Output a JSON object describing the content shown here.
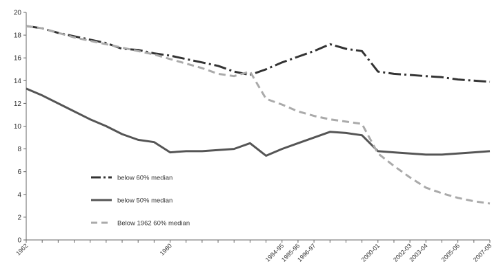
{
  "chart_data": {
    "type": "line",
    "title": "",
    "xlabel": "",
    "ylabel": "",
    "ylim": [
      0,
      20
    ],
    "yticks": [
      0,
      2,
      4,
      6,
      8,
      10,
      12,
      14,
      16,
      18,
      20
    ],
    "grid": false,
    "legend_position": "bottom-left",
    "x": [
      "1962",
      "1964",
      "1966",
      "1968",
      "1970",
      "1972",
      "1974",
      "1976",
      "1978",
      "1980",
      "1982",
      "1984",
      "1986",
      "1988",
      "1990",
      "1992",
      "1994-95",
      "1995-96",
      "1996-97",
      "1997-98",
      "1998-99",
      "1999-00",
      "2000-01",
      "2001-02",
      "2002-03",
      "2003-04",
      "2004-05",
      "2005-06",
      "2006-07",
      "2007-08"
    ],
    "x_tick_labels": [
      "1962",
      "1980",
      "1994-95",
      "1995-96",
      "1996-97",
      "2000-01",
      "2002-03",
      "2003-04",
      "2005-06",
      "2007-08"
    ],
    "series": [
      {
        "name": "below 60% median",
        "style": "dash-dot",
        "color": "#333333",
        "values": [
          18.8,
          18.6,
          18.2,
          17.9,
          17.6,
          17.3,
          16.8,
          16.7,
          16.4,
          16.2,
          15.9,
          15.6,
          15.3,
          14.8,
          14.5,
          15.0,
          15.6,
          16.1,
          16.6,
          17.2,
          16.8,
          16.6,
          14.8,
          14.6,
          14.5,
          14.4,
          14.3,
          14.1,
          14.0,
          13.9
        ]
      },
      {
        "name": "below 50% median",
        "style": "solid",
        "color": "#555555",
        "values": [
          13.3,
          12.7,
          12.0,
          11.3,
          10.6,
          10.0,
          9.3,
          8.8,
          8.6,
          7.7,
          7.8,
          7.8,
          7.9,
          8.0,
          8.5,
          7.4,
          8.0,
          8.5,
          9.0,
          9.5,
          9.4,
          9.2,
          7.8,
          7.7,
          7.6,
          7.5,
          7.5,
          7.6,
          7.7,
          7.8
        ]
      },
      {
        "name": "Below 1962 60% median",
        "style": "dashed",
        "color": "#aaaaaa",
        "values": [
          18.8,
          18.6,
          18.2,
          17.8,
          17.5,
          17.2,
          16.9,
          16.6,
          16.3,
          15.9,
          15.5,
          15.1,
          14.6,
          14.4,
          14.8,
          12.4,
          11.9,
          11.3,
          10.9,
          10.6,
          10.4,
          10.2,
          7.6,
          6.5,
          5.5,
          4.6,
          4.1,
          3.7,
          3.4,
          3.2
        ]
      }
    ]
  }
}
